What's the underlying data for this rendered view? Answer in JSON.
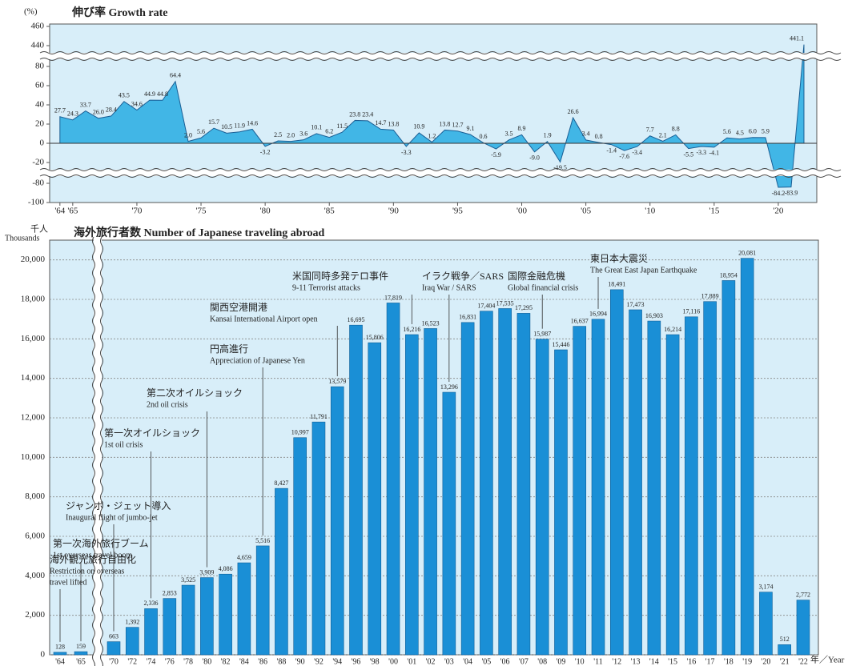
{
  "chart_data": [
    {
      "type": "area",
      "title": "伸び率 Growth rate",
      "y_label": "(%)",
      "x": [
        1964,
        1965,
        1966,
        1967,
        1968,
        1969,
        1970,
        1971,
        1972,
        1973,
        1974,
        1975,
        1976,
        1977,
        1978,
        1979,
        1980,
        1981,
        1982,
        1983,
        1984,
        1985,
        1986,
        1987,
        1988,
        1989,
        1990,
        1991,
        1992,
        1993,
        1994,
        1995,
        1996,
        1997,
        1998,
        1999,
        2000,
        2001,
        2002,
        2003,
        2004,
        2005,
        2006,
        2007,
        2008,
        2009,
        2010,
        2011,
        2012,
        2013,
        2014,
        2015,
        2016,
        2017,
        2018,
        2019,
        2020,
        2021,
        2022
      ],
      "values": [
        27.7,
        24.3,
        33.7,
        26.0,
        28.4,
        43.5,
        34.6,
        44.9,
        44.8,
        64.4,
        2.0,
        5.6,
        15.7,
        10.5,
        11.9,
        14.6,
        -3.2,
        2.5,
        2.0,
        3.6,
        10.1,
        6.2,
        11.5,
        23.8,
        23.4,
        14.7,
        13.8,
        -3.3,
        10.9,
        1.2,
        13.8,
        12.7,
        9.1,
        0.6,
        -5.9,
        3.5,
        8.9,
        -9.0,
        1.9,
        -19.5,
        26.6,
        3.4,
        0.8,
        -1.4,
        -7.6,
        -3.4,
        7.7,
        2.1,
        8.8,
        -5.5,
        -3.3,
        -4.1,
        5.6,
        4.5,
        6.0,
        5.9,
        -84.2,
        -83.9,
        441.1
      ],
      "value_labels": [
        "27.7",
        "24.3",
        "33.7",
        "26.0",
        "28.4",
        "43.5",
        "34.6",
        "44.9",
        "44.8",
        "64.4",
        "2.0",
        "5.6",
        "15.7",
        "10.5",
        "11.9",
        "14.6",
        "-3.2",
        "2.5",
        "2.0",
        "3.6",
        "10.1",
        "6.2",
        "11.5",
        "23.8",
        "23.4",
        "14.7",
        "13.8",
        "-3.3",
        "10.9",
        "1.2",
        "13.8",
        "12.7",
        "9.1",
        "0.6",
        "-5.9",
        "3.5",
        "8.9",
        "-9.0",
        "1.9",
        "-19.5",
        "26.6",
        "3.4",
        "0.8",
        "-1.4",
        "-7.6",
        "-3.4",
        "7.7",
        "2.1",
        "8.8",
        "-5.5",
        "-3.3",
        "-4.1",
        "5.6",
        "4.5",
        "6.0",
        "5.9",
        "-84.2",
        "-83.9",
        "441.1"
      ],
      "color": "#41b6e6",
      "xlim": [
        1963.2,
        2023
      ],
      "xticks": [
        {
          "value": 1964,
          "label": "'64"
        },
        {
          "value": 1965,
          "label": "'65"
        },
        {
          "value": 1970,
          "label": "'70"
        },
        {
          "value": 1975,
          "label": "'75"
        },
        {
          "value": 1980,
          "label": "'80"
        },
        {
          "value": 1985,
          "label": "'85"
        },
        {
          "value": 1990,
          "label": "'90"
        },
        {
          "value": 1995,
          "label": "'95"
        },
        {
          "value": 2000,
          "label": "'00"
        },
        {
          "value": 2005,
          "label": "'05"
        },
        {
          "value": 2010,
          "label": "'10"
        },
        {
          "value": 2015,
          "label": "'15"
        },
        {
          "value": 2020,
          "label": "'20"
        }
      ],
      "ylim": [
        -100,
        460
      ],
      "yticks": [
        460,
        440,
        80,
        60,
        40,
        20,
        0,
        -20,
        -80,
        -100
      ],
      "y_breaks": [
        [
          -80,
          -20
        ],
        [
          80,
          440
        ]
      ]
    },
    {
      "type": "bar",
      "title": "海外旅行者数 Number of Japanese traveling abroad",
      "y_label": "千人",
      "y_label_en": "Thousands",
      "x_label": "年／Year",
      "categories": [
        "'64",
        "'65",
        "'70",
        "'72",
        "'74",
        "'76",
        "'78",
        "'80",
        "'82",
        "'84",
        "'86",
        "'88",
        "'90",
        "'92",
        "'94",
        "'96",
        "'98",
        "'00",
        "'01",
        "'02",
        "'03",
        "'04",
        "'05",
        "'06",
        "'07",
        "'08",
        "'09",
        "'10",
        "'11",
        "'12",
        "'13",
        "'14",
        "'15",
        "'16",
        "'17",
        "'18",
        "'19",
        "'20",
        "'21",
        "'22"
      ],
      "values": [
        128,
        159,
        663,
        1392,
        2336,
        2853,
        3525,
        3909,
        4086,
        4659,
        5516,
        8427,
        10997,
        11791,
        13579,
        16695,
        15806,
        17819,
        16216,
        16523,
        13296,
        16831,
        17404,
        17535,
        17295,
        15987,
        15446,
        16637,
        16994,
        18491,
        17473,
        16903,
        16214,
        17116,
        17889,
        18954,
        20081,
        3174,
        512,
        2772
      ],
      "value_labels": [
        "128",
        "159",
        "663",
        "1,392",
        "2,336",
        "2,853",
        "3,525",
        "3,909",
        "4,086",
        "4,659",
        "5,516",
        "8,427",
        "10,997",
        "11,791",
        "13,579",
        "16,695",
        "15,806",
        "17,819",
        "16,216",
        "16,523",
        "13,296",
        "16,831",
        "17,404",
        "17,535",
        "17,295",
        "15,987",
        "15,446",
        "16,637",
        "16,994",
        "18,491",
        "17,473",
        "16,903",
        "16,214",
        "17,116",
        "17,889",
        "18,954",
        "20,081",
        "3,174",
        "512",
        "2,772"
      ],
      "color": "#1a8fd6",
      "ylim": [
        0,
        21000
      ],
      "yticks": [
        0,
        {
          "value": 2000,
          "label": "2,000"
        },
        {
          "value": 4000,
          "label": "4,000"
        },
        {
          "value": 6000,
          "label": "6,000"
        },
        {
          "value": 8000,
          "label": "8,000"
        },
        {
          "value": 10000,
          "label": "10,000"
        },
        {
          "value": 12000,
          "label": "12,000"
        },
        {
          "value": 14000,
          "label": "14,000"
        },
        {
          "value": 16000,
          "label": "16,000"
        },
        {
          "value": 18000,
          "label": "18,000"
        },
        {
          "value": 20000,
          "label": "20,000"
        }
      ],
      "grid": true,
      "annotations": [
        {
          "lines": [
            "海外観光旅行自由化",
            "Restriction on overseas",
            "travel lifted"
          ]
        },
        {
          "lines": [
            "第一次海外旅行ブーム",
            "1st overseas travel boom"
          ]
        },
        {
          "lines": [
            "ジャンボ・ジェット導入",
            "Inaugural flight of jumbo-jet"
          ]
        },
        {
          "lines": [
            "第一次オイルショック",
            "1st oil crisis"
          ]
        },
        {
          "lines": [
            "第二次オイルショック",
            "2nd oil crisis"
          ]
        },
        {
          "lines": [
            "円高進行",
            "Appreciation of Japanese Yen"
          ]
        },
        {
          "lines": [
            "関西空港開港",
            "Kansai International Airport open"
          ]
        },
        {
          "lines": [
            "米国同時多発テロ事件",
            "9-11 Terrorist attacks"
          ]
        },
        {
          "lines": [
            "イラク戦争／SARS",
            "Iraq War / SARS"
          ]
        },
        {
          "lines": [
            "国際金融危機",
            "Global financial crisis"
          ]
        },
        {
          "lines": [
            "東日本大震災",
            "The Great East Japan Earthquake"
          ]
        }
      ]
    }
  ]
}
